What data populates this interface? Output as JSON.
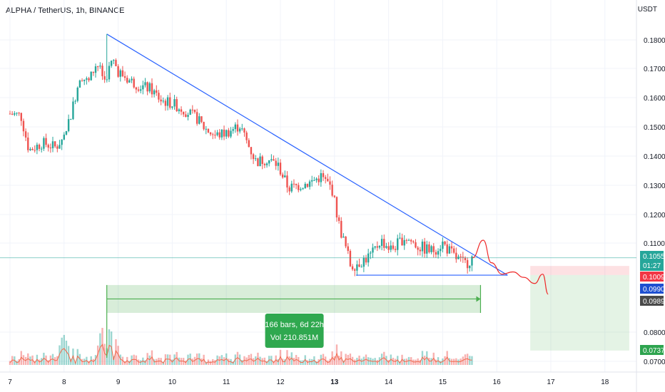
{
  "header": {
    "title": "ALPHA / TetherUS, 1h, BINANCE",
    "currency": "USDT"
  },
  "colors": {
    "up": "#26a69a",
    "down": "#ef5350",
    "trendline": "#2962ff",
    "projection": "#ef2828",
    "range_fill": "#4caf50",
    "price_tag": "#26a69a",
    "alert_tag": "#f23645",
    "buy_tag": "#1e4fd1",
    "grey_tag": "#4a4a4a"
  },
  "chart_data": {
    "type": "candlestick",
    "title": "ALPHA / TetherUS, 1h, BINANCE",
    "ylim": [
      0.07,
      0.19
    ],
    "y_ticks": [
      "0.1800",
      "0.1700",
      "0.1600",
      "0.1500",
      "0.1400",
      "0.1300",
      "0.1200",
      "0.1100",
      "0.0800",
      "0.0700"
    ],
    "x_ticks": [
      "7",
      "8",
      "9",
      "10",
      "11",
      "12",
      "13",
      "14",
      "15",
      "16",
      "17",
      "18"
    ],
    "x_axis_days": [
      7,
      8,
      9,
      10,
      11,
      12,
      13,
      14,
      15,
      16,
      17,
      18
    ],
    "grid": true,
    "price_path": [
      [
        7.0,
        0.1545
      ],
      [
        7.2,
        0.154
      ],
      [
        7.35,
        0.142
      ],
      [
        7.6,
        0.1445
      ],
      [
        7.85,
        0.143
      ],
      [
        8.0,
        0.147
      ],
      [
        8.15,
        0.156
      ],
      [
        8.3,
        0.168
      ],
      [
        8.45,
        0.165
      ],
      [
        8.6,
        0.172
      ],
      [
        8.75,
        0.166
      ],
      [
        8.9,
        0.173
      ],
      [
        9.0,
        0.169
      ],
      [
        9.2,
        0.166
      ],
      [
        9.4,
        0.164
      ],
      [
        9.6,
        0.163
      ],
      [
        9.8,
        0.159
      ],
      [
        10.0,
        0.158
      ],
      [
        10.2,
        0.156
      ],
      [
        10.45,
        0.153
      ],
      [
        10.6,
        0.1495
      ],
      [
        10.8,
        0.147
      ],
      [
        11.0,
        0.148
      ],
      [
        11.25,
        0.1505
      ],
      [
        11.4,
        0.144
      ],
      [
        11.55,
        0.138
      ],
      [
        11.75,
        0.139
      ],
      [
        11.95,
        0.137
      ],
      [
        12.15,
        0.129
      ],
      [
        12.35,
        0.13
      ],
      [
        12.55,
        0.131
      ],
      [
        12.75,
        0.133
      ],
      [
        12.95,
        0.129
      ],
      [
        13.1,
        0.115
      ],
      [
        13.3,
        0.103
      ],
      [
        13.5,
        0.1045
      ],
      [
        13.7,
        0.1065
      ],
      [
        13.85,
        0.111
      ],
      [
        14.05,
        0.108
      ],
      [
        14.3,
        0.112
      ],
      [
        14.55,
        0.109
      ],
      [
        14.8,
        0.1075
      ],
      [
        15.0,
        0.11
      ],
      [
        15.2,
        0.106
      ],
      [
        15.4,
        0.1035
      ],
      [
        15.55,
        0.1055
      ]
    ],
    "trendline": {
      "start": [
        8.79,
        0.182
      ],
      "end": [
        16.2,
        0.1002
      ]
    },
    "support_line": {
      "start": [
        13.4,
        0.1002
      ],
      "end": [
        16.2,
        0.1002
      ]
    },
    "projection_path": [
      [
        15.55,
        0.1055
      ],
      [
        15.75,
        0.111
      ],
      [
        15.9,
        0.104
      ],
      [
        16.1,
        0.1005
      ],
      [
        16.3,
        0.1012
      ],
      [
        16.5,
        0.0995
      ],
      [
        16.7,
        0.0975
      ],
      [
        16.85,
        0.1005
      ],
      [
        16.95,
        0.094
      ]
    ],
    "measure_range": {
      "x_start": 8.79,
      "x_end": 15.7,
      "y_top": 0.097,
      "y_bottom": 0.0875,
      "label_bars": "166 bars, 6d 22h",
      "label_vol": "Vol 210.851M"
    },
    "position_box": {
      "x_start": 16.62,
      "x_end": 18.45,
      "entry": 0.1009,
      "target": 0.0737,
      "stop": 0.103
    },
    "price_tags": [
      {
        "label": "0.1055",
        "value": 0.1055,
        "sub": "01:27",
        "role": "last"
      },
      {
        "label": "0.1009",
        "value": 0.1009,
        "role": "entry"
      },
      {
        "label": "0.0990",
        "value": 0.099,
        "role": "bid"
      },
      {
        "label": "0.0989",
        "value": 0.0989,
        "role": "grey"
      },
      {
        "label": "0.0737",
        "value": 0.0737,
        "role": "target"
      }
    ]
  }
}
